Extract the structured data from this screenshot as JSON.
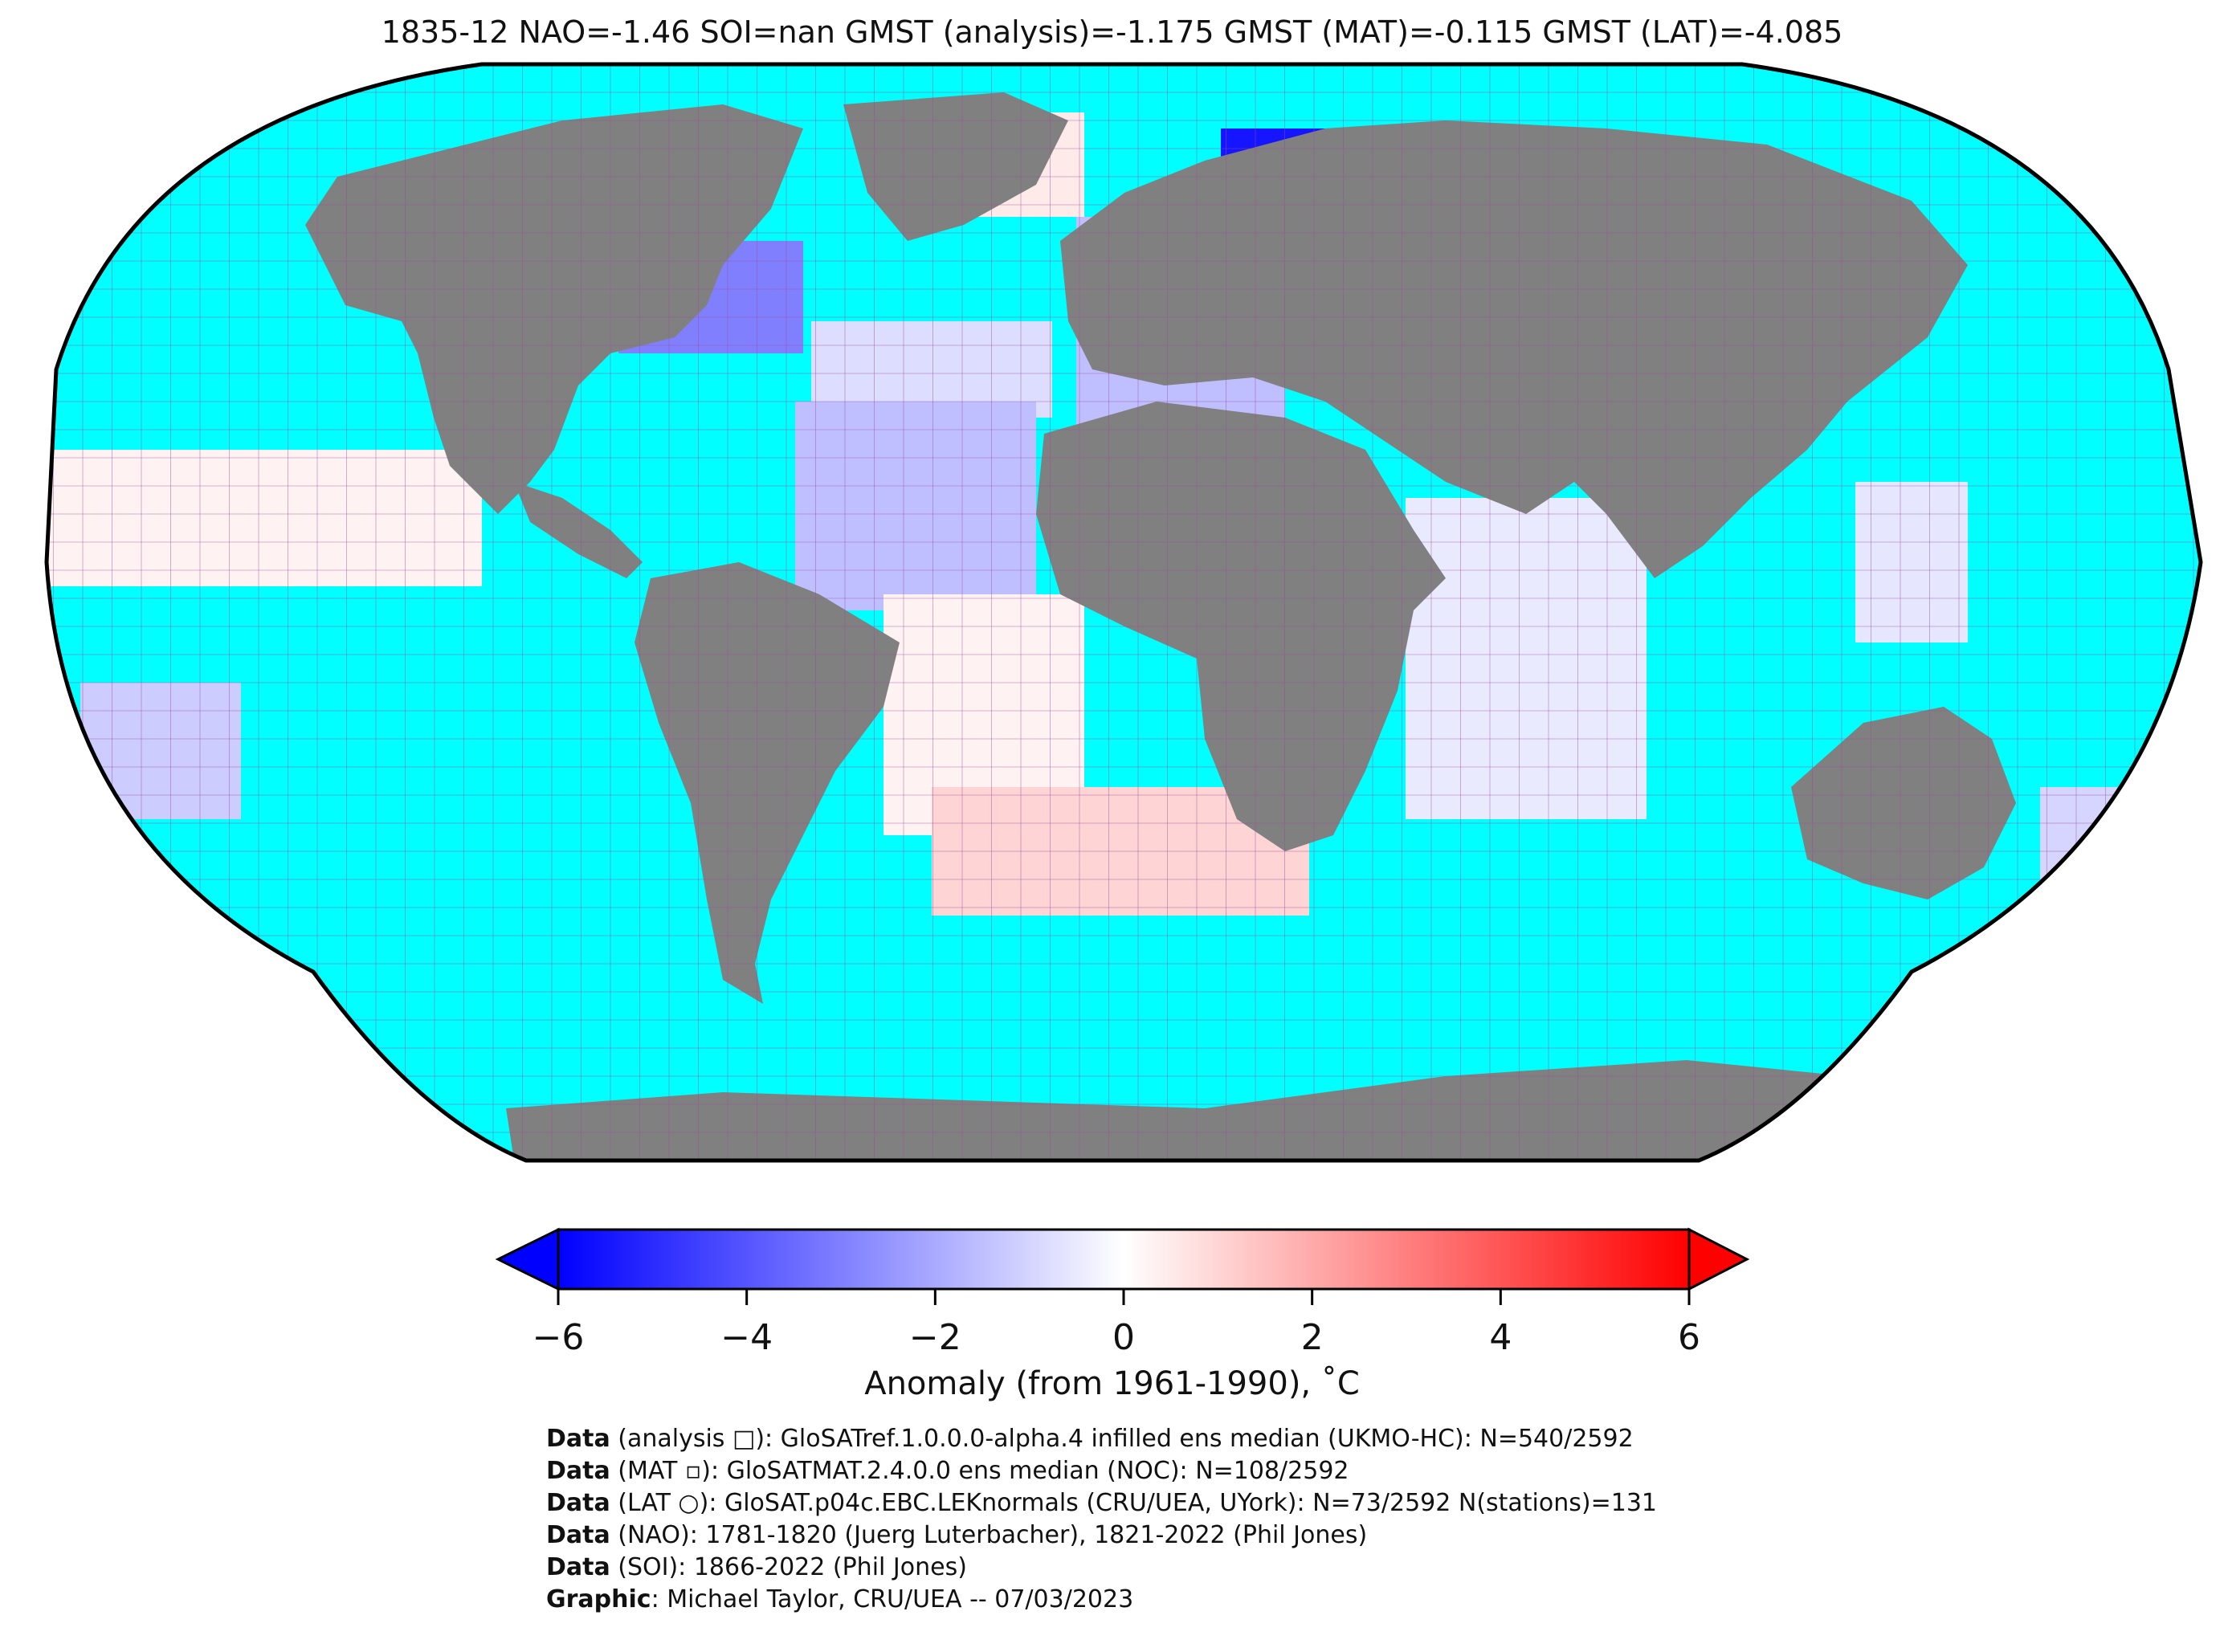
{
  "title": "1835-12 NAO=-1.46 SOI=nan GMST (analysis)=-1.175 GMST (MAT)=-0.115 GMST (LAT)=-4.085",
  "colors": {
    "ocean": "#00ffff",
    "land": "#808080",
    "grid": "#9a4fa0",
    "cold": "#0000ff",
    "warm": "#ff0000",
    "neutral": "#ffffff"
  },
  "colorbar": {
    "min": -6,
    "max": 6,
    "ticks": [
      "−6",
      "−4",
      "−2",
      "0",
      "2",
      "4",
      "6"
    ],
    "tick_values": [
      -6,
      -4,
      -2,
      0,
      2,
      4,
      6
    ],
    "label": "Anomaly (from 1961-1990), ˚C",
    "extend": "both"
  },
  "credits": [
    {
      "bold": "Data",
      "text": " (analysis □): GloSATref.1.0.0.0-alpha.4 infilled ens median (UKMO-HC): N=540/2592"
    },
    {
      "bold": "Data",
      "text": " (MAT ▫): GloSATMAT.2.4.0.0 ens median (NOC): N=108/2592"
    },
    {
      "bold": "Data",
      "text": " (LAT ○): GloSAT.p04c.EBC.LEKnormals (CRU/UEA, UYork): N=73/2592 N(stations)=131"
    },
    {
      "bold": "Data",
      "text": " (NAO): 1781-1820 (Juerg Luterbacher), 1821-2022 (Phil Jones)"
    },
    {
      "bold": "Data",
      "text": " (SOI): 1866-2022 (Phil Jones)"
    },
    {
      "bold": "Graphic",
      "text": ": Michael Taylor, CRU/UEA -- 07/03/2023"
    }
  ],
  "anomaly_patches": [
    {
      "region": "north-eurasia",
      "value": -5.5
    },
    {
      "region": "east-siberia",
      "value": -3.5
    },
    {
      "region": "western-europe",
      "value": -1.5
    },
    {
      "region": "east-north-america",
      "value": -3.0
    },
    {
      "region": "alaska",
      "value": -1.5
    },
    {
      "region": "greenland",
      "value": 0.5
    },
    {
      "region": "north-atlantic",
      "value": -0.8
    },
    {
      "region": "central-atlantic",
      "value": -1.5
    },
    {
      "region": "south-atlantic",
      "value": 0.3
    },
    {
      "region": "south-atlantic-south",
      "value": 1.0
    },
    {
      "region": "north-pacific-hawaii",
      "value": 0.3
    },
    {
      "region": "indian-ocean",
      "value": -0.5
    },
    {
      "region": "west-pacific-indonesia",
      "value": -0.6
    },
    {
      "region": "south-pacific",
      "value": -1.2
    },
    {
      "region": "tasman-nz",
      "value": -1.0
    }
  ]
}
